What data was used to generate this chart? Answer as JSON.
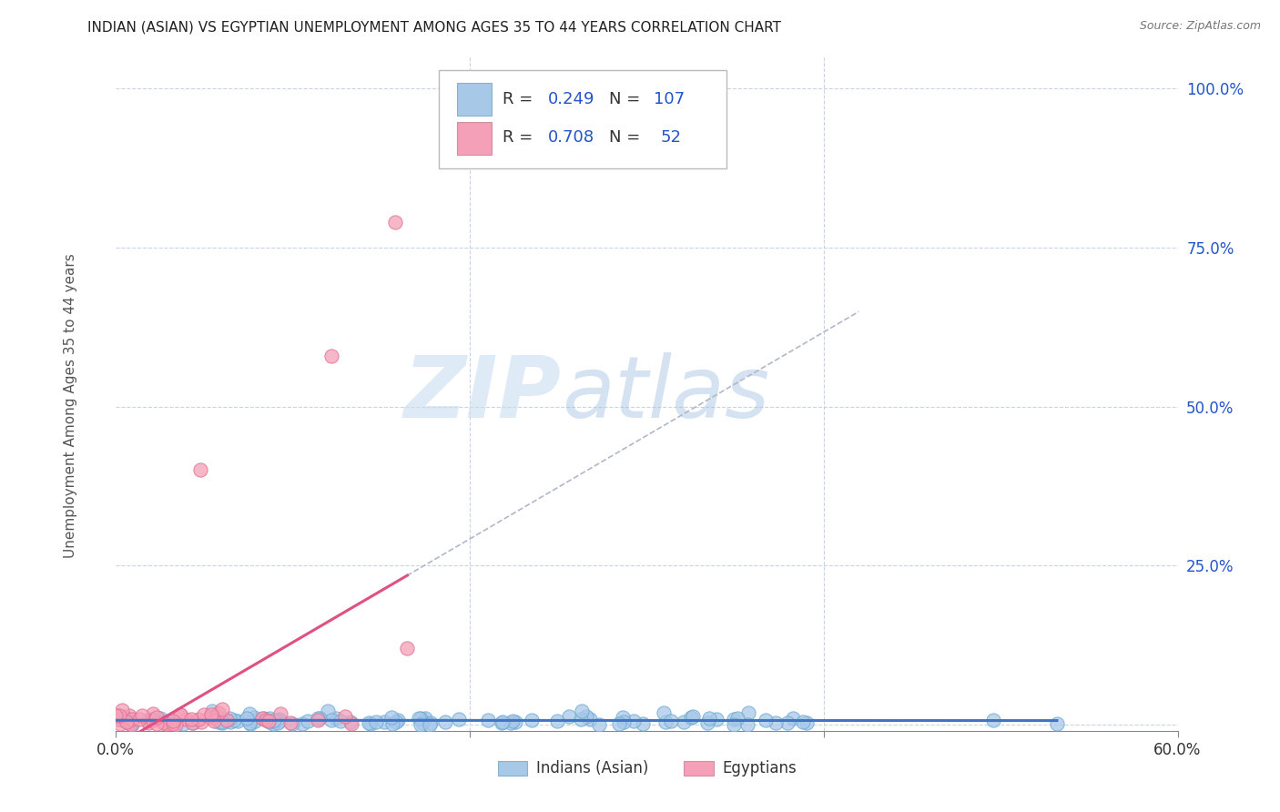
{
  "title": "INDIAN (ASIAN) VS EGYPTIAN UNEMPLOYMENT AMONG AGES 35 TO 44 YEARS CORRELATION CHART",
  "source": "Source: ZipAtlas.com",
  "ylabel": "Unemployment Among Ages 35 to 44 years",
  "xlim": [
    0.0,
    0.6
  ],
  "ylim": [
    -0.01,
    1.05
  ],
  "yticks": [
    0.0,
    0.25,
    0.5,
    0.75,
    1.0
  ],
  "xtick_labels": [
    "0.0%",
    "60.0%"
  ],
  "ytick_labels": [
    "",
    "25.0%",
    "50.0%",
    "75.0%",
    "100.0%"
  ],
  "legend_labels": [
    "Indians (Asian)",
    "Egyptians"
  ],
  "indian_color": "#a8c8e8",
  "indian_edge_color": "#6aaad4",
  "egyptian_color": "#f4a0b8",
  "egyptian_edge_color": "#e07090",
  "indian_line_color": "#4472c4",
  "egyptian_line_color": "#e05080",
  "indian_R": 0.249,
  "indian_N": 107,
  "egyptian_R": 0.708,
  "egyptian_N": 52,
  "watermark_zip": "ZIP",
  "watermark_atlas": "atlas",
  "background_color": "#ffffff",
  "grid_color": "#c8d4e8",
  "title_color": "#222222",
  "axis_label_color": "#555555",
  "stats_color": "#2255cc",
  "tick_color": "#2255cc"
}
